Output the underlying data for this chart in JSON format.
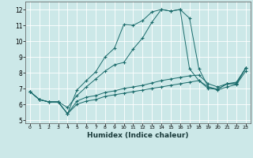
{
  "xlabel": "Humidex (Indice chaleur)",
  "bg_color": "#cce8e8",
  "grid_color": "#ffffff",
  "line_color": "#1a6b6b",
  "xlim": [
    -0.5,
    23.5
  ],
  "ylim": [
    4.8,
    12.5
  ],
  "xticks": [
    0,
    1,
    2,
    3,
    4,
    5,
    6,
    7,
    8,
    9,
    10,
    11,
    12,
    13,
    14,
    15,
    16,
    17,
    18,
    19,
    20,
    21,
    22,
    23
  ],
  "yticks": [
    5,
    6,
    7,
    8,
    9,
    10,
    11,
    12
  ],
  "lines": [
    {
      "x": [
        0,
        1,
        2,
        3,
        4,
        5,
        6,
        7,
        8,
        9,
        10,
        11,
        12,
        13,
        14,
        15,
        16,
        17,
        18,
        19,
        20,
        21,
        22,
        23
      ],
      "y": [
        6.8,
        6.3,
        6.15,
        6.15,
        5.4,
        6.9,
        7.5,
        8.05,
        9.0,
        9.55,
        11.05,
        11.0,
        11.3,
        11.85,
        12.0,
        11.9,
        12.0,
        11.45,
        8.25,
        7.1,
        6.95,
        7.3,
        7.3,
        8.3
      ]
    },
    {
      "x": [
        0,
        1,
        2,
        3,
        4,
        5,
        6,
        7,
        8,
        9,
        10,
        11,
        12,
        13,
        14,
        15,
        16,
        17,
        18,
        19,
        20,
        21,
        22,
        23
      ],
      "y": [
        6.8,
        6.3,
        6.15,
        6.15,
        5.8,
        6.55,
        7.1,
        7.6,
        8.1,
        8.5,
        8.65,
        9.5,
        10.2,
        11.2,
        12.0,
        11.9,
        12.0,
        8.25,
        7.5,
        7.0,
        6.95,
        7.3,
        7.3,
        8.3
      ]
    },
    {
      "x": [
        0,
        1,
        2,
        3,
        4,
        5,
        6,
        7,
        8,
        9,
        10,
        11,
        12,
        13,
        14,
        15,
        16,
        17,
        18,
        19,
        20,
        21,
        22,
        23
      ],
      "y": [
        6.8,
        6.3,
        6.15,
        6.15,
        5.4,
        6.2,
        6.45,
        6.55,
        6.75,
        6.85,
        7.0,
        7.1,
        7.2,
        7.35,
        7.5,
        7.6,
        7.7,
        7.8,
        7.85,
        7.3,
        7.1,
        7.3,
        7.4,
        8.3
      ]
    },
    {
      "x": [
        0,
        1,
        2,
        3,
        4,
        5,
        6,
        7,
        8,
        9,
        10,
        11,
        12,
        13,
        14,
        15,
        16,
        17,
        18,
        19,
        20,
        21,
        22,
        23
      ],
      "y": [
        6.8,
        6.3,
        6.15,
        6.15,
        5.4,
        6.0,
        6.2,
        6.3,
        6.5,
        6.6,
        6.7,
        6.8,
        6.9,
        7.0,
        7.1,
        7.2,
        7.3,
        7.4,
        7.5,
        7.1,
        6.9,
        7.1,
        7.25,
        8.1
      ]
    }
  ]
}
